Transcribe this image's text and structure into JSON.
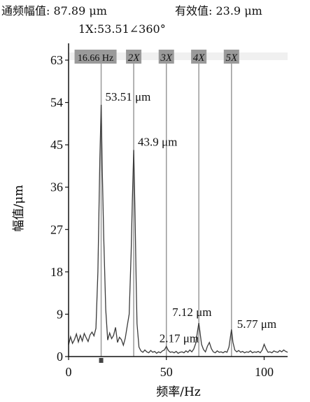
{
  "header": {
    "overall_label": "通频幅值: 87.89 μm",
    "effective_label": "有效值: 23.9 μm",
    "harmonic_readout": "1X:53.51∠360°"
  },
  "chart_data": {
    "type": "line",
    "xlabel": "频率/Hz",
    "ylabel": "幅值/μm",
    "xlim": [
      0,
      112
    ],
    "ylim": [
      0,
      63
    ],
    "xticks": [
      "0",
      "50",
      "100"
    ],
    "xtick_values": [
      0,
      50,
      100
    ],
    "yticks": [
      "0",
      "9",
      "18",
      "27",
      "36",
      "45",
      "54",
      "63"
    ],
    "ytick_values": [
      0,
      9,
      18,
      27,
      36,
      45,
      54,
      63
    ],
    "grid": false,
    "line_color": "#3a3a3a",
    "marker_color": "#9a9a9a",
    "harmonic_markers": [
      {
        "label": "16.66 Hz",
        "x": 16.66
      },
      {
        "label": "2X",
        "x": 33.3
      },
      {
        "label": "3X",
        "x": 50.0
      },
      {
        "label": "4X",
        "x": 66.6
      },
      {
        "label": "5X",
        "x": 83.3
      }
    ],
    "annotations": [
      {
        "text": "53.51 μm",
        "x": 16.66,
        "y": 53.51
      },
      {
        "text": "43.9 μm",
        "x": 33.3,
        "y": 43.9
      },
      {
        "text": "2.17 μm",
        "x": 50.0,
        "y": 2.17
      },
      {
        "text": "7.12 μm",
        "x": 66.6,
        "y": 7.12
      },
      {
        "text": "5.77 μm",
        "x": 83.3,
        "y": 5.77
      }
    ],
    "series": [
      {
        "x": [
          0,
          1,
          2,
          3,
          4,
          5,
          6,
          7,
          8,
          9,
          10,
          11,
          12,
          13,
          14,
          15,
          15.5,
          16,
          16.66,
          17.2,
          18,
          19,
          20,
          21,
          22,
          23,
          24,
          25,
          26,
          27,
          28,
          29,
          30,
          31,
          32,
          32.6,
          33.3,
          34,
          34.6,
          35,
          36,
          37,
          38,
          39,
          40,
          41,
          42,
          43,
          44,
          45,
          46,
          47,
          48,
          49,
          50,
          51,
          52,
          53,
          54,
          55,
          56,
          57,
          58,
          59,
          60,
          61,
          62,
          63,
          64,
          65,
          66,
          66.6,
          67.2,
          68,
          69,
          70,
          71,
          72,
          73,
          74,
          75,
          76,
          77,
          78,
          79,
          80,
          81,
          82,
          83.3,
          84,
          85,
          86,
          87,
          88,
          89,
          90,
          91,
          92,
          93,
          94,
          95,
          96,
          97,
          98,
          99,
          100,
          101,
          102,
          103,
          104,
          105,
          106,
          107,
          108,
          109,
          110,
          111,
          112
        ],
        "y": [
          2.5,
          4.2,
          2.8,
          3.6,
          4.8,
          3.1,
          4.5,
          3.3,
          4.9,
          4.0,
          3.2,
          4.6,
          5.2,
          4.4,
          6.0,
          18.0,
          30.0,
          42.0,
          53.51,
          40.0,
          25.0,
          10.0,
          3.5,
          5.0,
          3.8,
          4.5,
          6.2,
          3.0,
          4.1,
          3.6,
          2.4,
          3.9,
          6.5,
          9.0,
          22.0,
          33.0,
          43.9,
          30.0,
          15.0,
          7.0,
          2.0,
          1.2,
          0.9,
          1.4,
          1.0,
          0.8,
          1.3,
          0.9,
          1.1,
          0.7,
          1.0,
          0.8,
          1.2,
          1.4,
          2.17,
          1.3,
          0.9,
          1.0,
          0.8,
          1.1,
          0.7,
          0.9,
          1.0,
          0.8,
          1.2,
          0.9,
          1.4,
          1.0,
          1.6,
          2.8,
          5.5,
          7.12,
          5.2,
          2.6,
          1.5,
          1.0,
          2.2,
          3.0,
          1.7,
          1.0,
          0.8,
          1.2,
          0.9,
          1.0,
          0.8,
          1.1,
          0.9,
          2.0,
          5.77,
          3.1,
          1.4,
          1.0,
          1.3,
          0.9,
          1.1,
          0.8,
          1.0,
          0.9,
          1.2,
          0.8,
          1.0,
          0.9,
          1.1,
          0.8,
          1.4,
          2.6,
          1.6,
          0.9,
          1.0,
          0.8,
          1.2,
          1.0,
          0.9,
          1.3,
          1.0,
          1.4,
          1.1,
          0.9
        ]
      }
    ]
  }
}
